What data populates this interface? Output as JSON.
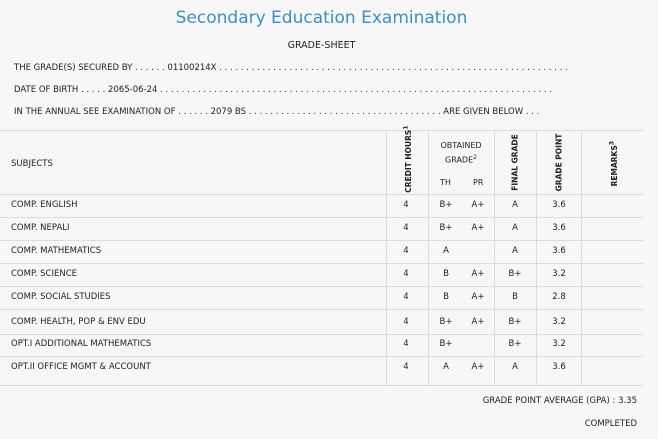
{
  "header": {
    "title": "Secondary Education Examination",
    "subtitle": "GRADE-SHEET"
  },
  "info": {
    "secured_by_label": "THE GRADE(S) SECURED BY . . . . . .",
    "secured_by_value": "01100214X . . . . . . . . . . . . . . . . . . . . . . . . . . . . . . . . . . . . . . . . . . . . . . . . . . . . . . . . . . . . . . . . .",
    "dob_label": "DATE OF BIRTH . . . . .",
    "dob_value": "2065-06-24 . . . . . . . . . . . . . . . . . . . . . . . . . . . . . . . . . . . . . . . . . . . . . . . . . . . . . . . . . . . . . . . . . . . . . . . . .",
    "exam_label": "IN THE ANNUAL SEE EXAMINATION OF . . . . . .",
    "exam_value": "2079 BS . . . . . . . . . . . . . . . . . . . . . . . . . . . . . . . . . . . .",
    "exam_suffix": "ARE GIVEN BELOW . . ."
  },
  "table": {
    "headers": {
      "subjects": "SUBJECTS",
      "credit_hours": "CREDIT HOURS",
      "credit_hours_sup": "1",
      "obtained_grade": "OBTAINED GRADE",
      "obtained_grade_sup": "2",
      "th": "TH",
      "pr": "PR",
      "final_grade": "FINAL GRADE",
      "grade_point": "GRADE POINT",
      "remarks": "REMARKS",
      "remarks_sup": "3"
    },
    "rows": [
      {
        "subject": "COMP. ENGLISH",
        "credit": "4",
        "th": "B+",
        "pr": "A+",
        "final": "A",
        "gp": "3.6"
      },
      {
        "subject": "COMP. NEPALI",
        "credit": "4",
        "th": "B+",
        "pr": "A+",
        "final": "A",
        "gp": "3.6"
      },
      {
        "subject": "COMP. MATHEMATICS",
        "credit": "4",
        "th": "A",
        "pr": "",
        "final": "A",
        "gp": "3.6"
      },
      {
        "subject": "COMP. SCIENCE",
        "credit": "4",
        "th": "B",
        "pr": "A+",
        "final": "B+",
        "gp": "3.2"
      },
      {
        "subject": "COMP. SOCIAL STUDIES",
        "credit": "4",
        "th": "B",
        "pr": "A+",
        "final": "B",
        "gp": "2.8"
      },
      {
        "subject": "COMP. HEALTH, POP & ENV EDU",
        "credit": "4",
        "th": "B+",
        "pr": "A+",
        "final": "B+",
        "gp": "3.2"
      },
      {
        "subject": "OPT.I ADDITIONAL MATHEMATICS",
        "credit": "4",
        "th": "B+",
        "pr": "",
        "final": "B+",
        "gp": "3.2"
      },
      {
        "subject": "OPT.II OFFICE MGMT & ACCOUNT",
        "credit": "4",
        "th": "A",
        "pr": "A+",
        "final": "A",
        "gp": "3.6"
      }
    ]
  },
  "summary": {
    "gpa": "GRADE POINT AVERAGE (GPA) : 3.35",
    "status": "COMPLETED"
  }
}
